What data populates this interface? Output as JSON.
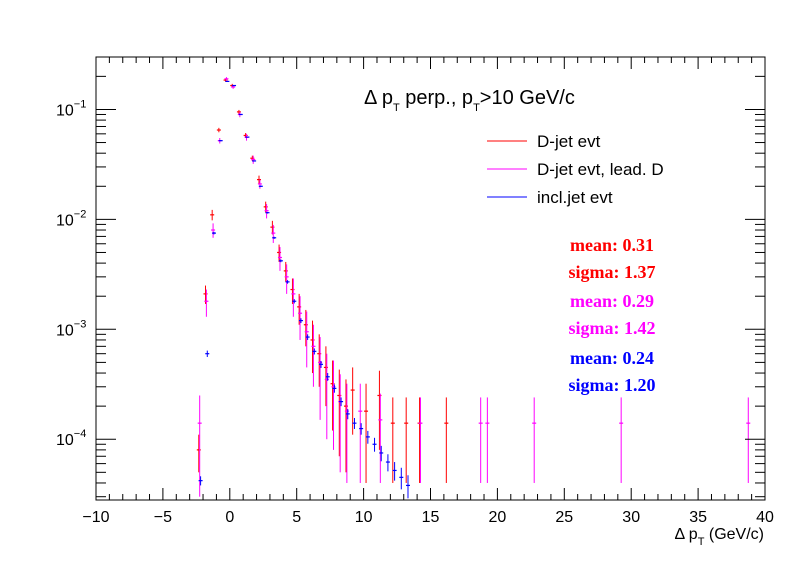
{
  "chart_data": {
    "type": "scatter",
    "title_parts": [
      "Δ p",
      "T",
      " perp., p",
      "T",
      ">10 GeV/c"
    ],
    "xlabel_parts": [
      "Δ p",
      "T",
      " (GeV/c)"
    ],
    "ylabel": "",
    "xlim": [
      -10,
      40
    ],
    "ylim": [
      2.8e-05,
      0.3
    ],
    "yscale": "log",
    "grid": false,
    "legend_position": "top-right",
    "x_ticks": [
      "−10",
      "−5",
      "0",
      "5",
      "10",
      "15",
      "20",
      "25",
      "30",
      "35",
      "40"
    ],
    "y_ticks": [
      {
        "value": 0.0001,
        "base": "10",
        "exp": "−4"
      },
      {
        "value": 0.001,
        "base": "10",
        "exp": "−3"
      },
      {
        "value": 0.01,
        "base": "10",
        "exp": "−2"
      },
      {
        "value": 0.1,
        "base": "10",
        "exp": "−1"
      }
    ],
    "series": [
      {
        "name": "D-jet evt",
        "color": "#ff0000",
        "stats": {
          "mean": "mean: 0.31",
          "sigma": "sigma: 1.37"
        },
        "points": [
          [
            -2.25,
            8e-05,
            3e-05
          ],
          [
            -1.75,
            0.0021,
            0.0004
          ],
          [
            -1.25,
            0.011,
            0.0012
          ],
          [
            -0.75,
            0.065,
            0.003
          ],
          [
            -0.25,
            0.185,
            0.006
          ],
          [
            0.25,
            0.165,
            0.006
          ],
          [
            0.75,
            0.095,
            0.004
          ],
          [
            1.25,
            0.058,
            0.003
          ],
          [
            1.75,
            0.036,
            0.002
          ],
          [
            2.25,
            0.023,
            0.002
          ],
          [
            2.75,
            0.013,
            0.0015
          ],
          [
            3.25,
            0.0085,
            0.0012
          ],
          [
            3.75,
            0.005,
            0.0009
          ],
          [
            4.25,
            0.0034,
            0.0007
          ],
          [
            4.75,
            0.0023,
            0.0006
          ],
          [
            5.25,
            0.0016,
            0.0005
          ],
          [
            5.75,
            0.0011,
            0.0004
          ],
          [
            6.25,
            0.0008,
            0.0004
          ],
          [
            6.75,
            0.0006,
            0.0003
          ],
          [
            7.25,
            0.00045,
            0.00025
          ],
          [
            7.75,
            0.00032,
            0.0002
          ],
          [
            8.25,
            0.00025,
            0.00018
          ],
          [
            8.75,
            0.0002,
            0.00015
          ],
          [
            9.25,
            0.00028,
            0.00017
          ],
          [
            10.25,
            0.00018,
            0.00014
          ],
          [
            11.25,
            0.00025,
            0.00017
          ],
          [
            12.25,
            0.00014,
            0.0001
          ],
          [
            13.25,
            0.00014,
            0.0001
          ],
          [
            14.25,
            0.00014,
            0.0001
          ],
          [
            16.25,
            0.00014,
            0.0001
          ]
        ]
      },
      {
        "name": "D-jet evt, lead. D",
        "color": "#ff00ff",
        "stats": {
          "mean": "mean: 0.29",
          "sigma": "sigma: 1.42"
        },
        "points": [
          [
            -2.25,
            0.00014,
            0.00011
          ],
          [
            -1.75,
            0.0018,
            0.0005
          ],
          [
            -1.25,
            0.008,
            0.0012
          ],
          [
            -0.75,
            0.052,
            0.003
          ],
          [
            -0.25,
            0.19,
            0.007
          ],
          [
            0.25,
            0.16,
            0.006
          ],
          [
            0.75,
            0.09,
            0.005
          ],
          [
            1.25,
            0.056,
            0.004
          ],
          [
            1.75,
            0.035,
            0.003
          ],
          [
            2.25,
            0.021,
            0.002
          ],
          [
            2.75,
            0.012,
            0.0018
          ],
          [
            3.25,
            0.0075,
            0.0014
          ],
          [
            3.75,
            0.0045,
            0.0011
          ],
          [
            4.25,
            0.003,
            0.0009
          ],
          [
            4.75,
            0.0021,
            0.0008
          ],
          [
            5.25,
            0.0014,
            0.0006
          ],
          [
            5.75,
            0.00095,
            0.0005
          ],
          [
            6.25,
            0.0007,
            0.0004
          ],
          [
            6.75,
            0.0005,
            0.00035
          ],
          [
            7.25,
            0.00035,
            0.00025
          ],
          [
            7.75,
            0.0003,
            0.00022
          ],
          [
            8.25,
            0.00022,
            0.00017
          ],
          [
            8.75,
            0.00018,
            0.00014
          ],
          [
            9.75,
            0.00018,
            0.00014
          ],
          [
            11.25,
            0.00015,
            0.00011
          ],
          [
            14.25,
            0.00014,
            0.0001
          ],
          [
            18.75,
            0.00014,
            0.0001
          ],
          [
            19.25,
            0.00014,
            0.0001
          ],
          [
            22.75,
            0.00014,
            0.0001
          ],
          [
            29.25,
            0.00014,
            0.0001
          ],
          [
            38.75,
            0.00014,
            0.0001
          ]
        ]
      },
      {
        "name": "incl.jet evt",
        "color": "#0000ff",
        "stats": {
          "mean": "mean: 0.24",
          "sigma": "sigma: 1.20"
        },
        "points": [
          [
            -2.25,
            4.2e-05,
            4e-06
          ],
          [
            -1.75,
            0.0006,
            4e-05
          ],
          [
            -1.25,
            0.0075,
            0.0002
          ],
          [
            -0.75,
            0.052,
            0.0005
          ],
          [
            -0.25,
            0.18,
            0.001
          ],
          [
            0.25,
            0.165,
            0.001
          ],
          [
            0.75,
            0.09,
            0.0007
          ],
          [
            1.25,
            0.056,
            0.0006
          ],
          [
            1.75,
            0.034,
            0.0004
          ],
          [
            2.25,
            0.02,
            0.0003
          ],
          [
            2.75,
            0.0115,
            0.0002
          ],
          [
            3.25,
            0.0068,
            0.00015
          ],
          [
            3.75,
            0.0042,
            0.00012
          ],
          [
            4.25,
            0.0027,
            0.0001
          ],
          [
            4.75,
            0.0018,
            8e-05
          ],
          [
            5.25,
            0.0012,
            6e-05
          ],
          [
            5.75,
            0.00085,
            5e-05
          ],
          [
            6.25,
            0.00063,
            4e-05
          ],
          [
            6.75,
            0.00048,
            3.5e-05
          ],
          [
            7.25,
            0.00037,
            3e-05
          ],
          [
            7.75,
            0.00029,
            2.5e-05
          ],
          [
            8.25,
            0.00022,
            2e-05
          ],
          [
            8.75,
            0.00017,
            1.8e-05
          ],
          [
            9.25,
            0.00014,
            1.6e-05
          ],
          [
            9.75,
            0.000125,
            1.5e-05
          ],
          [
            10.25,
            0.000105,
            1.4e-05
          ],
          [
            10.75,
            9e-05,
            1.3e-05
          ],
          [
            11.25,
            7.5e-05,
            1.2e-05
          ],
          [
            11.75,
            6.2e-05,
            1.1e-05
          ],
          [
            12.25,
            5.2e-05,
            1e-05
          ],
          [
            12.75,
            4.5e-05,
            1e-05
          ],
          [
            13.25,
            3.8e-05,
            9e-06
          ]
        ]
      }
    ]
  }
}
